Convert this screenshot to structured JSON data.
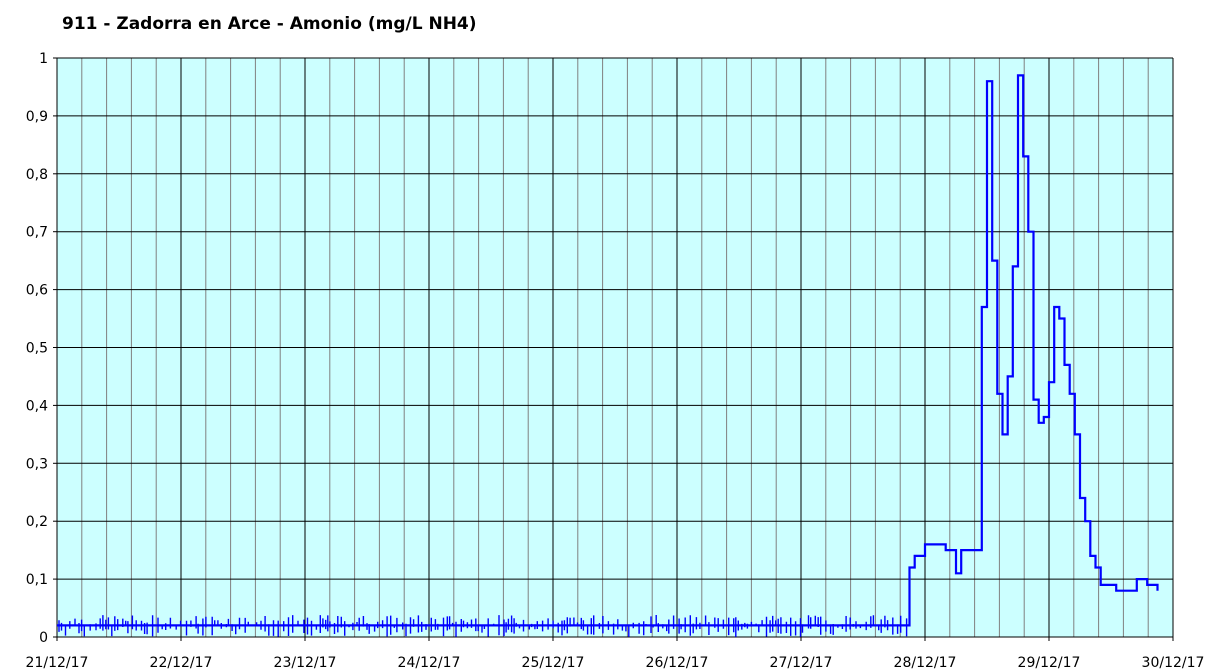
{
  "chart_data": {
    "type": "line",
    "title": "911 - Zadorra en Arce - Amonio (mg/L NH4)",
    "xlabel": "",
    "ylabel": "",
    "x_range": [
      "21/12/17",
      "30/12/17"
    ],
    "ylim": [
      0,
      1
    ],
    "x_ticks": [
      "21/12/17",
      "22/12/17",
      "23/12/17",
      "24/12/17",
      "25/12/17",
      "26/12/17",
      "27/12/17",
      "28/12/17",
      "29/12/17",
      "30/12/17"
    ],
    "y_ticks": [
      "0",
      "0,1",
      "0,2",
      "0,3",
      "0,4",
      "0,5",
      "0,6",
      "0,7",
      "0,8",
      "0,9",
      "1"
    ],
    "grid": true,
    "legend": "none",
    "colors": {
      "plot_background": "#ccffff",
      "series_line": "#0000ff",
      "major_grid": "#000000",
      "minor_grid": "#808080"
    },
    "series": [
      {
        "x": [
          "21/12/17 00:00",
          "21/12/17 12:00",
          "22/12/17 00:00",
          "22/12/17 12:00",
          "23/12/17 00:00",
          "23/12/17 12:00",
          "24/12/17 00:00",
          "24/12/17 12:00",
          "25/12/17 00:00",
          "25/12/17 12:00",
          "26/12/17 00:00",
          "26/12/17 12:00",
          "27/12/17 00:00",
          "27/12/17 12:00",
          "27/12/17 18:00",
          "27/12/17 21:00",
          "27/12/17 22:00",
          "28/12/17 00:00",
          "28/12/17 04:00",
          "28/12/17 06:00",
          "28/12/17 07:00",
          "28/12/17 08:00",
          "28/12/17 11:00",
          "28/12/17 12:00",
          "28/12/17 13:00",
          "28/12/17 14:00",
          "28/12/17 15:00",
          "28/12/17 16:00",
          "28/12/17 17:00",
          "28/12/17 18:00",
          "28/12/17 19:00",
          "28/12/17 20:00",
          "28/12/17 21:00",
          "28/12/17 22:00",
          "28/12/17 23:00",
          "29/12/17 00:00",
          "29/12/17 01:00",
          "29/12/17 02:00",
          "29/12/17 03:00",
          "29/12/17 04:00",
          "29/12/17 05:00",
          "29/12/17 06:00",
          "29/12/17 07:00",
          "29/12/17 08:00",
          "29/12/17 09:00",
          "29/12/17 10:00",
          "29/12/17 11:00",
          "29/12/17 13:00",
          "29/12/17 16:00",
          "29/12/17 17:00",
          "29/12/17 19:00",
          "29/12/17 20:00",
          "29/12/17 21:00"
        ],
        "values": [
          0.02,
          0.02,
          0.02,
          0.02,
          0.02,
          0.02,
          0.02,
          0.02,
          0.02,
          0.02,
          0.02,
          0.02,
          0.02,
          0.02,
          0.02,
          0.12,
          0.14,
          0.16,
          0.15,
          0.11,
          0.15,
          0.15,
          0.57,
          0.96,
          0.65,
          0.42,
          0.35,
          0.45,
          0.64,
          0.97,
          0.83,
          0.7,
          0.41,
          0.37,
          0.38,
          0.44,
          0.57,
          0.55,
          0.47,
          0.42,
          0.35,
          0.24,
          0.2,
          0.14,
          0.12,
          0.09,
          0.09,
          0.08,
          0.08,
          0.1,
          0.09,
          0.09,
          0.08
        ]
      }
    ]
  }
}
